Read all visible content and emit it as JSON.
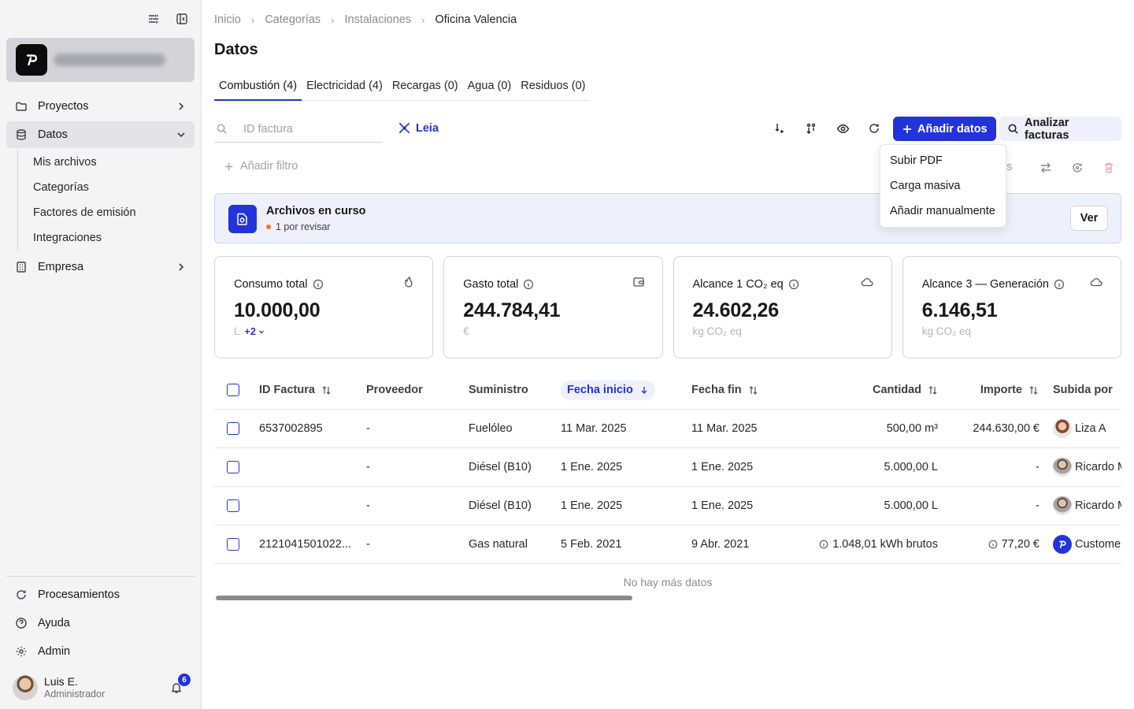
{
  "sidebar": {
    "nav": {
      "proyectos": "Proyectos",
      "datos": "Datos",
      "datos_sub": [
        "Mis archivos",
        "Categorías",
        "Factores de emisión",
        "Integraciones"
      ],
      "empresa": "Empresa"
    },
    "bottom": {
      "procesamientos": "Procesamientos",
      "ayuda": "Ayuda",
      "admin": "Admin"
    },
    "user": {
      "name": "Luis E.",
      "role": "Administrador",
      "notifications": "6"
    }
  },
  "breadcrumb": [
    "Inicio",
    "Categorías",
    "Instalaciones",
    "Oficina Valencia"
  ],
  "page_title": "Datos",
  "tabs": [
    "Combustión (4)",
    "Electricidad (4)",
    "Recargas (0)",
    "Agua (0)",
    "Residuos (0)"
  ],
  "toolbar": {
    "search_placeholder": "ID factura",
    "leia": "Leia",
    "add_data": "Añadir datos",
    "analyze": "Analizar facturas"
  },
  "filter": {
    "add_filter": "Añadir filtro",
    "hidden_text": "dos"
  },
  "dropdown": [
    "Subir PDF",
    "Carga masiva",
    "Añadir manualmente"
  ],
  "banner": {
    "title": "Archivos en curso",
    "subtitle": "1 por revisar",
    "button": "Ver"
  },
  "cards": [
    {
      "label": "Consumo total",
      "value": "10.000,00",
      "unit": "L",
      "extra": "+2"
    },
    {
      "label": "Gasto total",
      "value": "244.784,41",
      "unit": "€"
    },
    {
      "label": "Alcance 1 CO₂ eq",
      "value": "24.602,26",
      "unit": "kg CO₂ eq"
    },
    {
      "label": "Alcance 3 — Generación",
      "value": "6.146,51",
      "unit": "kg CO₂ eq"
    }
  ],
  "table": {
    "headers": {
      "id": "ID Factura",
      "proveedor": "Proveedor",
      "suministro": "Suministro",
      "fecha_inicio": "Fecha inicio",
      "fecha_fin": "Fecha fin",
      "cantidad": "Cantidad",
      "importe": "Importe",
      "subida_por": "Subida por"
    },
    "rows": [
      {
        "id": "6537002895",
        "proveedor": "-",
        "suministro": "Fuelóleo",
        "fecha_inicio": "11 Mar. 2025",
        "fecha_fin": "11 Mar. 2025",
        "cantidad": "500,00 m³",
        "importe": "244.630,00 €",
        "subida_por": "Liza A"
      },
      {
        "id": "",
        "proveedor": "-",
        "suministro": "Diésel (B10)",
        "fecha_inicio": "1 Ene. 2025",
        "fecha_fin": "1 Ene. 2025",
        "cantidad": "5.000,00 L",
        "importe": "-",
        "subida_por": "Ricardo M"
      },
      {
        "id": "",
        "proveedor": "-",
        "suministro": "Diésel (B10)",
        "fecha_inicio": "1 Ene. 2025",
        "fecha_fin": "1 Ene. 2025",
        "cantidad": "5.000,00 L",
        "importe": "-",
        "subida_por": "Ricardo M"
      },
      {
        "id": "2121041501022...",
        "proveedor": "-",
        "suministro": "Gas natural",
        "fecha_inicio": "5 Feb. 2021",
        "fecha_fin": "9 Abr. 2021",
        "cantidad": "1.048,01 kWh brutos",
        "importe": "77,20 €",
        "subida_por": "Customer"
      }
    ],
    "no_more": "No hay más datos"
  }
}
